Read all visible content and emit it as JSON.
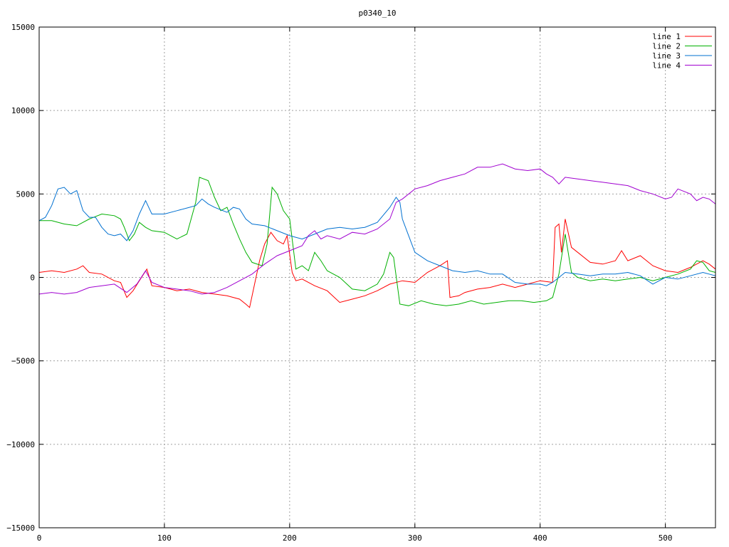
{
  "chart_data": {
    "type": "line",
    "title": "p0340_10",
    "xlim": [
      0,
      540
    ],
    "ylim": [
      -15000,
      15000
    ],
    "xticks": [
      0,
      100,
      200,
      300,
      400,
      500
    ],
    "yticks": [
      -15000,
      -10000,
      -5000,
      0,
      5000,
      10000,
      15000
    ],
    "grid": true,
    "legend_position": "top-right",
    "series": [
      {
        "name": "line 1",
        "color": "#ff0000",
        "points": [
          [
            0,
            300
          ],
          [
            10,
            400
          ],
          [
            20,
            300
          ],
          [
            30,
            500
          ],
          [
            35,
            700
          ],
          [
            40,
            300
          ],
          [
            50,
            200
          ],
          [
            60,
            -200
          ],
          [
            65,
            -300
          ],
          [
            70,
            -1200
          ],
          [
            75,
            -800
          ],
          [
            80,
            -200
          ],
          [
            86,
            500
          ],
          [
            90,
            -500
          ],
          [
            100,
            -600
          ],
          [
            110,
            -800
          ],
          [
            120,
            -700
          ],
          [
            130,
            -900
          ],
          [
            140,
            -1000
          ],
          [
            150,
            -1100
          ],
          [
            160,
            -1300
          ],
          [
            165,
            -1600
          ],
          [
            168,
            -1800
          ],
          [
            172,
            -400
          ],
          [
            176,
            1000
          ],
          [
            180,
            2000
          ],
          [
            185,
            2700
          ],
          [
            190,
            2200
          ],
          [
            195,
            2000
          ],
          [
            198,
            2500
          ],
          [
            202,
            300
          ],
          [
            205,
            -200
          ],
          [
            210,
            -100
          ],
          [
            220,
            -500
          ],
          [
            230,
            -800
          ],
          [
            240,
            -1500
          ],
          [
            250,
            -1300
          ],
          [
            260,
            -1100
          ],
          [
            270,
            -800
          ],
          [
            280,
            -400
          ],
          [
            290,
            -200
          ],
          [
            300,
            -300
          ],
          [
            310,
            300
          ],
          [
            320,
            700
          ],
          [
            326,
            1000
          ],
          [
            328,
            -1200
          ],
          [
            335,
            -1100
          ],
          [
            340,
            -900
          ],
          [
            350,
            -700
          ],
          [
            360,
            -600
          ],
          [
            370,
            -400
          ],
          [
            380,
            -600
          ],
          [
            390,
            -400
          ],
          [
            400,
            -200
          ],
          [
            410,
            -300
          ],
          [
            412,
            3000
          ],
          [
            415,
            3200
          ],
          [
            417,
            1500
          ],
          [
            420,
            3500
          ],
          [
            425,
            1800
          ],
          [
            430,
            1500
          ],
          [
            440,
            900
          ],
          [
            450,
            800
          ],
          [
            460,
            1000
          ],
          [
            465,
            1600
          ],
          [
            470,
            1000
          ],
          [
            480,
            1300
          ],
          [
            490,
            700
          ],
          [
            500,
            400
          ],
          [
            510,
            300
          ],
          [
            520,
            600
          ],
          [
            530,
            1000
          ],
          [
            535,
            800
          ],
          [
            540,
            500
          ]
        ]
      },
      {
        "name": "line 2",
        "color": "#00b000",
        "points": [
          [
            0,
            3400
          ],
          [
            10,
            3400
          ],
          [
            20,
            3200
          ],
          [
            30,
            3100
          ],
          [
            40,
            3500
          ],
          [
            50,
            3800
          ],
          [
            60,
            3700
          ],
          [
            65,
            3500
          ],
          [
            68,
            3000
          ],
          [
            72,
            2200
          ],
          [
            76,
            2600
          ],
          [
            80,
            3300
          ],
          [
            85,
            3000
          ],
          [
            90,
            2800
          ],
          [
            100,
            2700
          ],
          [
            110,
            2300
          ],
          [
            118,
            2600
          ],
          [
            125,
            4500
          ],
          [
            128,
            6000
          ],
          [
            135,
            5800
          ],
          [
            140,
            4800
          ],
          [
            145,
            4000
          ],
          [
            150,
            4200
          ],
          [
            155,
            3200
          ],
          [
            160,
            2300
          ],
          [
            165,
            1500
          ],
          [
            170,
            900
          ],
          [
            178,
            700
          ],
          [
            182,
            2000
          ],
          [
            186,
            5400
          ],
          [
            190,
            5000
          ],
          [
            195,
            4000
          ],
          [
            200,
            3500
          ],
          [
            205,
            500
          ],
          [
            210,
            700
          ],
          [
            215,
            400
          ],
          [
            220,
            1500
          ],
          [
            225,
            1000
          ],
          [
            230,
            400
          ],
          [
            240,
            0
          ],
          [
            250,
            -700
          ],
          [
            260,
            -800
          ],
          [
            270,
            -400
          ],
          [
            275,
            200
          ],
          [
            280,
            1500
          ],
          [
            283,
            1200
          ],
          [
            288,
            -1600
          ],
          [
            295,
            -1700
          ],
          [
            305,
            -1400
          ],
          [
            315,
            -1600
          ],
          [
            325,
            -1700
          ],
          [
            335,
            -1600
          ],
          [
            345,
            -1400
          ],
          [
            355,
            -1600
          ],
          [
            365,
            -1500
          ],
          [
            375,
            -1400
          ],
          [
            385,
            -1400
          ],
          [
            395,
            -1500
          ],
          [
            405,
            -1400
          ],
          [
            410,
            -1200
          ],
          [
            415,
            200
          ],
          [
            420,
            2600
          ],
          [
            425,
            300
          ],
          [
            430,
            0
          ],
          [
            440,
            -200
          ],
          [
            450,
            -100
          ],
          [
            460,
            -200
          ],
          [
            470,
            -100
          ],
          [
            480,
            0
          ],
          [
            490,
            -200
          ],
          [
            500,
            0
          ],
          [
            510,
            200
          ],
          [
            520,
            500
          ],
          [
            525,
            1000
          ],
          [
            530,
            900
          ],
          [
            535,
            400
          ],
          [
            540,
            300
          ]
        ]
      },
      {
        "name": "line 3",
        "color": "#0070d0",
        "points": [
          [
            0,
            3400
          ],
          [
            5,
            3600
          ],
          [
            10,
            4300
          ],
          [
            15,
            5300
          ],
          [
            20,
            5400
          ],
          [
            25,
            5000
          ],
          [
            30,
            5200
          ],
          [
            35,
            4000
          ],
          [
            40,
            3600
          ],
          [
            45,
            3600
          ],
          [
            50,
            3000
          ],
          [
            55,
            2600
          ],
          [
            60,
            2500
          ],
          [
            65,
            2600
          ],
          [
            70,
            2200
          ],
          [
            75,
            2800
          ],
          [
            80,
            3800
          ],
          [
            85,
            4600
          ],
          [
            90,
            3800
          ],
          [
            100,
            3800
          ],
          [
            110,
            4000
          ],
          [
            120,
            4200
          ],
          [
            125,
            4300
          ],
          [
            130,
            4700
          ],
          [
            135,
            4400
          ],
          [
            140,
            4200
          ],
          [
            150,
            3900
          ],
          [
            155,
            4200
          ],
          [
            160,
            4100
          ],
          [
            165,
            3500
          ],
          [
            170,
            3200
          ],
          [
            180,
            3100
          ],
          [
            190,
            2800
          ],
          [
            200,
            2500
          ],
          [
            210,
            2300
          ],
          [
            220,
            2600
          ],
          [
            230,
            2900
          ],
          [
            240,
            3000
          ],
          [
            250,
            2900
          ],
          [
            260,
            3000
          ],
          [
            270,
            3300
          ],
          [
            280,
            4200
          ],
          [
            285,
            4800
          ],
          [
            288,
            4500
          ],
          [
            290,
            3500
          ],
          [
            295,
            2500
          ],
          [
            300,
            1500
          ],
          [
            310,
            1000
          ],
          [
            320,
            700
          ],
          [
            330,
            400
          ],
          [
            340,
            300
          ],
          [
            350,
            400
          ],
          [
            360,
            200
          ],
          [
            370,
            200
          ],
          [
            380,
            -300
          ],
          [
            390,
            -400
          ],
          [
            400,
            -400
          ],
          [
            405,
            -500
          ],
          [
            410,
            -300
          ],
          [
            415,
            0
          ],
          [
            420,
            300
          ],
          [
            430,
            200
          ],
          [
            440,
            100
          ],
          [
            450,
            200
          ],
          [
            460,
            200
          ],
          [
            470,
            300
          ],
          [
            480,
            100
          ],
          [
            490,
            -400
          ],
          [
            500,
            0
          ],
          [
            510,
            -100
          ],
          [
            520,
            100
          ],
          [
            530,
            300
          ],
          [
            540,
            100
          ]
        ]
      },
      {
        "name": "line 4",
        "color": "#a000d0",
        "points": [
          [
            0,
            -1000
          ],
          [
            10,
            -900
          ],
          [
            20,
            -1000
          ],
          [
            30,
            -900
          ],
          [
            40,
            -600
          ],
          [
            50,
            -500
          ],
          [
            60,
            -400
          ],
          [
            70,
            -900
          ],
          [
            78,
            -400
          ],
          [
            85,
            400
          ],
          [
            90,
            -300
          ],
          [
            100,
            -600
          ],
          [
            110,
            -700
          ],
          [
            120,
            -800
          ],
          [
            130,
            -1000
          ],
          [
            140,
            -900
          ],
          [
            150,
            -600
          ],
          [
            160,
            -200
          ],
          [
            170,
            200
          ],
          [
            180,
            800
          ],
          [
            190,
            1300
          ],
          [
            200,
            1600
          ],
          [
            210,
            1900
          ],
          [
            215,
            2500
          ],
          [
            220,
            2800
          ],
          [
            225,
            2300
          ],
          [
            230,
            2500
          ],
          [
            240,
            2300
          ],
          [
            250,
            2700
          ],
          [
            260,
            2600
          ],
          [
            270,
            2900
          ],
          [
            280,
            3500
          ],
          [
            285,
            4500
          ],
          [
            290,
            4700
          ],
          [
            300,
            5300
          ],
          [
            310,
            5500
          ],
          [
            320,
            5800
          ],
          [
            330,
            6000
          ],
          [
            340,
            6200
          ],
          [
            350,
            6600
          ],
          [
            355,
            6600
          ],
          [
            360,
            6600
          ],
          [
            370,
            6800
          ],
          [
            380,
            6500
          ],
          [
            390,
            6400
          ],
          [
            400,
            6500
          ],
          [
            405,
            6200
          ],
          [
            410,
            6000
          ],
          [
            415,
            5600
          ],
          [
            420,
            6000
          ],
          [
            430,
            5900
          ],
          [
            440,
            5800
          ],
          [
            450,
            5700
          ],
          [
            460,
            5600
          ],
          [
            470,
            5500
          ],
          [
            480,
            5200
          ],
          [
            490,
            5000
          ],
          [
            500,
            4700
          ],
          [
            505,
            4800
          ],
          [
            510,
            5300
          ],
          [
            520,
            5000
          ],
          [
            525,
            4600
          ],
          [
            530,
            4800
          ],
          [
            535,
            4700
          ],
          [
            540,
            4400
          ]
        ]
      }
    ]
  }
}
